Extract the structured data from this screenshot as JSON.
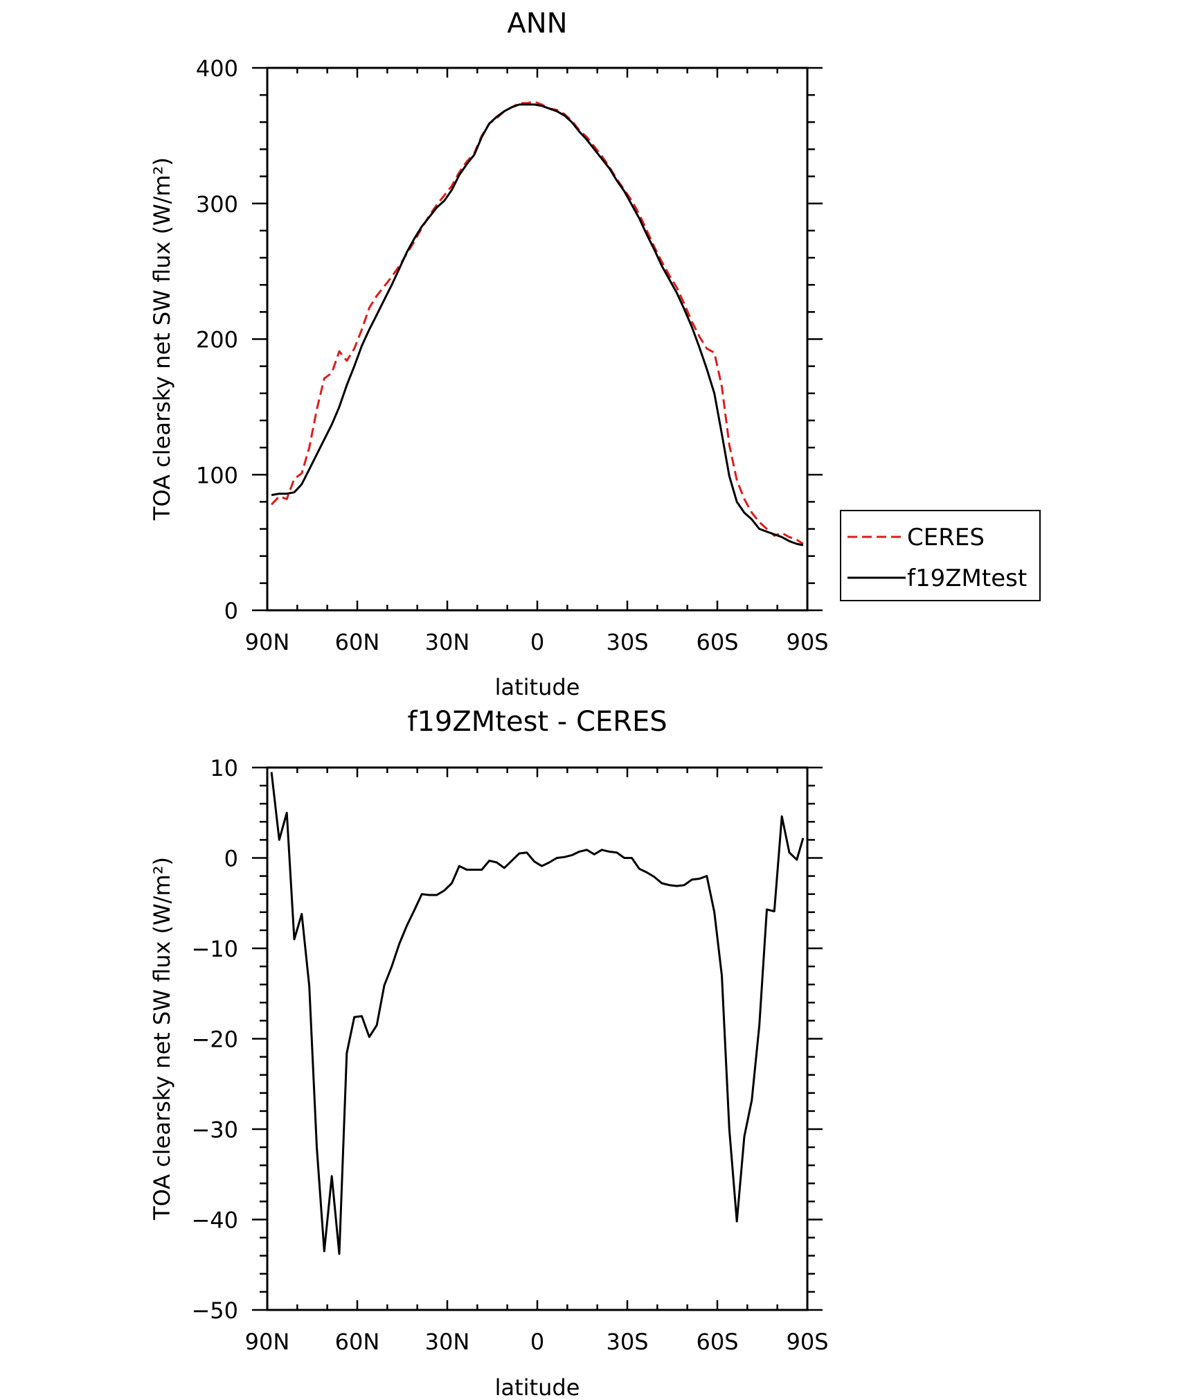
{
  "chart_data": [
    {
      "type": "line",
      "title": "ANN",
      "xlabel": "latitude",
      "ylabel": "TOA clearsky net SW flux (W/m²)",
      "xlim": [
        90,
        -90
      ],
      "ylim": [
        0,
        400
      ],
      "grid": false,
      "legend_position": "right",
      "xticks": [
        90,
        60,
        30,
        0,
        -30,
        -60,
        -90
      ],
      "xtick_labels": [
        "90N",
        "60N",
        "30N",
        "0",
        "30S",
        "60S",
        "90S"
      ],
      "yticks": [
        0,
        100,
        200,
        300,
        400
      ],
      "ytick_labels": [
        "0",
        "100",
        "200",
        "300",
        "400"
      ],
      "series": [
        {
          "name": "CERES",
          "color": "#dd1c1c",
          "style": "dashed",
          "x": [
            88.6,
            86,
            83.5,
            81,
            78.5,
            76,
            73.5,
            71,
            68.5,
            66,
            63.5,
            61,
            58.5,
            56,
            53.5,
            51,
            48.5,
            46,
            43.5,
            41,
            38.5,
            36,
            33.5,
            31,
            28.5,
            26,
            23.5,
            21,
            18.5,
            16,
            13.5,
            11,
            8.5,
            6,
            3.5,
            1,
            -1.5,
            -4,
            -6.5,
            -9,
            -11.5,
            -14,
            -16.5,
            -19,
            -21.5,
            -24,
            -26.5,
            -29,
            -31.5,
            -34,
            -36.5,
            -39,
            -41.5,
            -44,
            -46.5,
            -49,
            -51.5,
            -54,
            -56.5,
            -59,
            -61.5,
            -64,
            -66.5,
            -69,
            -71.5,
            -74,
            -76.5,
            -79,
            -81.5,
            -84,
            -86.5,
            -88.6
          ],
          "y": [
            78,
            84,
            82,
            97,
            101,
            120,
            148,
            171,
            175,
            191,
            184,
            193,
            207,
            223,
            232,
            239,
            246,
            254,
            263,
            272,
            282,
            291,
            299,
            306,
            313,
            323,
            331,
            337,
            350,
            359,
            363,
            368,
            371,
            374,
            374,
            375,
            373,
            370,
            369,
            366,
            361,
            354,
            349,
            342,
            335,
            327,
            318,
            310,
            302,
            292,
            280,
            268,
            257,
            247,
            238,
            226,
            213,
            202,
            193,
            190,
            165,
            122,
            96,
            82,
            72,
            65,
            60,
            55,
            57,
            54,
            52,
            49
          ]
        },
        {
          "name": "f19ZMtest",
          "color": "#000000",
          "style": "solid",
          "x": [
            88.6,
            86,
            83.5,
            81,
            78.5,
            76,
            73.5,
            71,
            68.5,
            66,
            63.5,
            61,
            58.5,
            56,
            53.5,
            51,
            48.5,
            46,
            43.5,
            41,
            38.5,
            36,
            33.5,
            31,
            28.5,
            26,
            23.5,
            21,
            18.5,
            16,
            13.5,
            11,
            8.5,
            6,
            3.5,
            1,
            -1.5,
            -4,
            -6.5,
            -9,
            -11.5,
            -14,
            -16.5,
            -19,
            -21.5,
            -24,
            -26.5,
            -29,
            -31.5,
            -34,
            -36.5,
            -39,
            -41.5,
            -44,
            -46.5,
            -49,
            -51.5,
            -54,
            -56.5,
            -59,
            -61.5,
            -64,
            -66.5,
            -69,
            -71.5,
            -74,
            -76.5,
            -79,
            -81.5,
            -84,
            -86.5,
            -88.6
          ],
          "y": [
            85,
            86,
            86,
            87,
            93,
            104,
            115,
            126,
            137,
            150,
            166,
            180,
            195,
            207,
            218,
            229,
            240,
            252,
            264,
            274,
            283,
            290,
            297,
            302,
            310,
            321,
            329,
            336,
            349,
            359,
            364,
            368,
            371,
            373,
            373,
            373,
            372,
            370,
            368,
            365,
            360,
            353,
            347,
            340,
            333,
            326,
            317,
            309,
            299,
            289,
            277,
            266,
            254,
            244,
            234,
            222,
            209,
            194,
            178,
            160,
            130,
            99,
            80,
            72,
            67,
            60,
            58,
            56,
            54,
            51,
            49,
            48
          ]
        }
      ]
    },
    {
      "type": "line",
      "title": "f19ZMtest - CERES",
      "xlabel": "latitude",
      "ylabel": "TOA clearsky net SW flux (W/m²)",
      "xlim": [
        90,
        -90
      ],
      "ylim": [
        -50,
        10
      ],
      "grid": false,
      "xticks": [
        90,
        60,
        30,
        0,
        -30,
        -60,
        -90
      ],
      "xtick_labels": [
        "90N",
        "60N",
        "30N",
        "0",
        "30S",
        "60S",
        "90S"
      ],
      "yticks": [
        -50,
        -40,
        -30,
        -20,
        -10,
        0,
        10
      ],
      "ytick_labels": [
        "−50",
        "−40",
        "−30",
        "−20",
        "−10",
        "0",
        "10"
      ],
      "series": [
        {
          "color": "#000000",
          "style": "solid",
          "x": [
            88.6,
            86,
            83.5,
            81,
            78.5,
            76,
            73.5,
            71,
            68.5,
            66,
            63.5,
            61,
            58.5,
            56,
            53.5,
            51,
            48.5,
            46,
            43.5,
            41,
            38.5,
            36,
            33.5,
            31,
            28.5,
            26,
            23.5,
            21,
            18.5,
            16,
            13.5,
            11,
            8.5,
            6,
            3.5,
            1,
            -1.5,
            -4,
            -6.5,
            -9,
            -11.5,
            -14,
            -16.5,
            -19,
            -21.5,
            -24,
            -26.5,
            -29,
            -31.5,
            -34,
            -36.5,
            -39,
            -41.5,
            -44,
            -46.5,
            -49,
            -51.5,
            -54,
            -56.5,
            -59,
            -61.5,
            -64,
            -66.5,
            -69,
            -71.5,
            -74,
            -76.5,
            -79,
            -81.5,
            -84,
            -86.5,
            -88.6
          ],
          "y": [
            9.5,
            2,
            5,
            -9,
            -6.2,
            -14.2,
            -32,
            -43.5,
            -35.2,
            -43.8,
            -21.6,
            -17.6,
            -17.5,
            -19.8,
            -18.5,
            -14.1,
            -12,
            -9.5,
            -7.5,
            -5.8,
            -4,
            -4.1,
            -4.1,
            -3.6,
            -2.8,
            -0.9,
            -1.3,
            -1.3,
            -1.3,
            -0.3,
            -0.5,
            -1.1,
            -0.3,
            0.5,
            0.6,
            -0.4,
            -0.9,
            -0.5,
            0,
            0.1,
            0.3,
            0.7,
            0.9,
            0.4,
            0.9,
            0.7,
            0.6,
            0,
            0,
            -1.2,
            -1.6,
            -2.1,
            -2.8,
            -3,
            -3.1,
            -3,
            -2.4,
            -2.3,
            -2,
            -6,
            -13,
            -30,
            -40.2,
            -30.8,
            -26.8,
            -18.5,
            -5.7,
            -5.9,
            4.6,
            0.6,
            -0.2,
            2.2
          ]
        }
      ]
    }
  ]
}
